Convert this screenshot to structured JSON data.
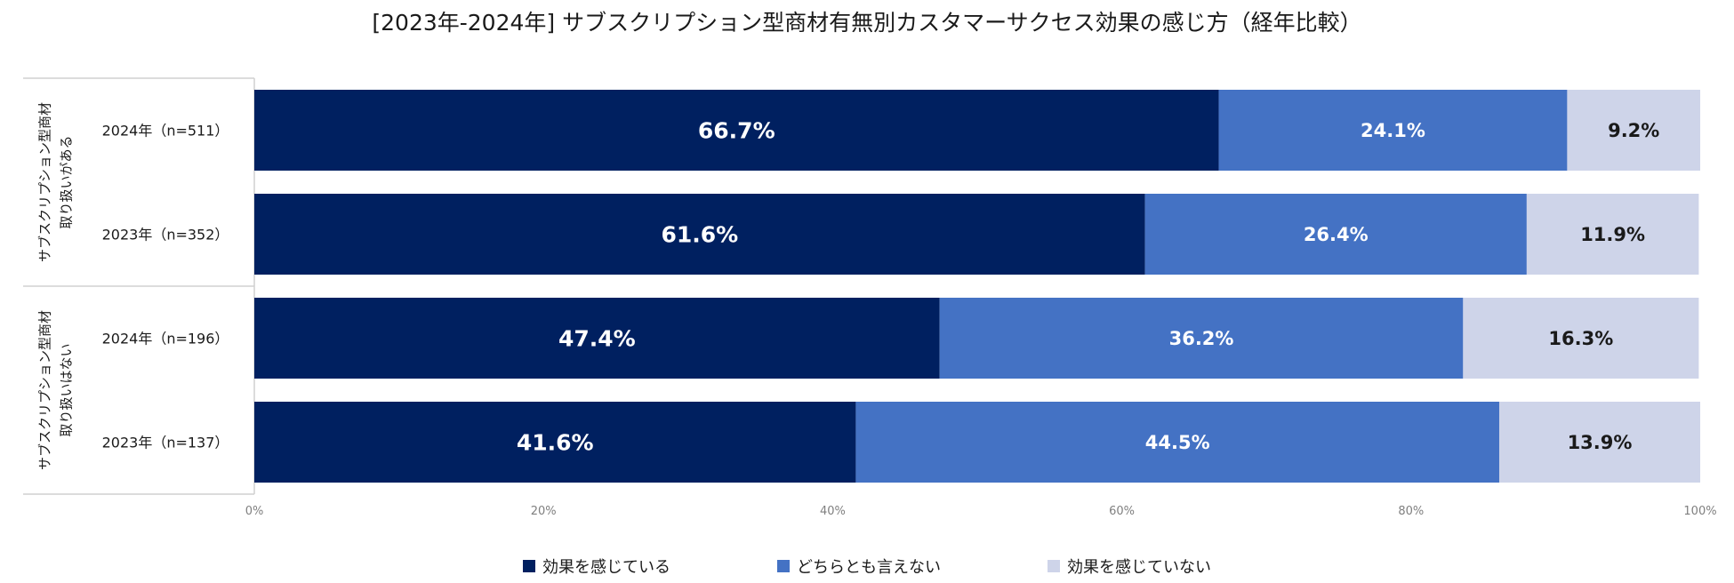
{
  "chart_data": {
    "type": "bar",
    "orientation": "horizontal",
    "stacked": true,
    "title": "[2023年-2024年] サブスクリプション型商材有無別カスタマーサクセス効果の感じ方（経年比較）",
    "groups": [
      {
        "label_lines": [
          "サブスクリプション型商材",
          "取り扱いがある"
        ],
        "rows": [
          0,
          1
        ]
      },
      {
        "label_lines": [
          "サブスクリプション型商材",
          "取り扱いはない"
        ],
        "rows": [
          2,
          3
        ]
      }
    ],
    "categories": [
      "2024年（n=511）",
      "2023年（n=352）",
      "2024年（n=196）",
      "2023年（n=137）"
    ],
    "series": [
      {
        "name": "効果を感じている",
        "color": "#002060",
        "label_color": "#ffffff",
        "values": [
          66.7,
          61.6,
          47.4,
          41.6
        ]
      },
      {
        "name": "どちらとも言えない",
        "color": "#4472c4",
        "label_color": "#ffffff",
        "values": [
          24.1,
          26.4,
          36.2,
          44.5
        ]
      },
      {
        "name": "効果を感じていない",
        "color": "#ced4e9",
        "label_color": "#1a1a1a",
        "values": [
          9.2,
          11.9,
          16.3,
          13.9
        ]
      }
    ],
    "value_suffix": "%",
    "xlim": [
      0,
      100
    ],
    "xticks": [
      "0%",
      "20%",
      "40%",
      "60%",
      "80%",
      "100%"
    ],
    "legend_position": "bottom"
  }
}
